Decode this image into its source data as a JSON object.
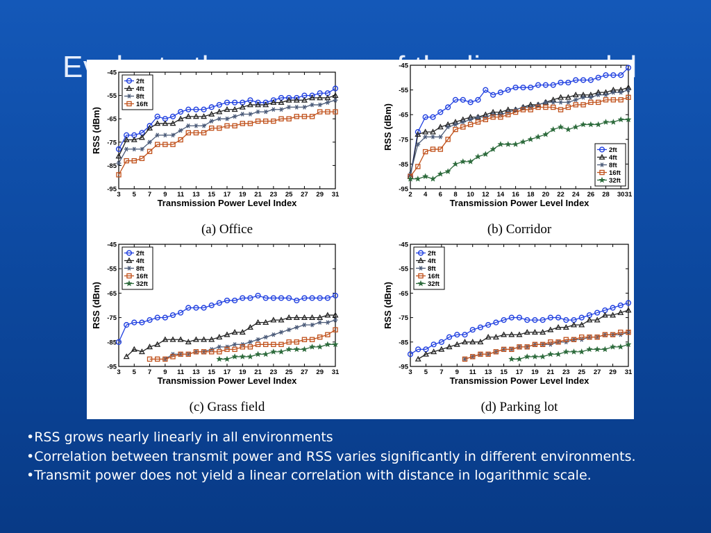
{
  "slide": {
    "title": "Evaluate the accuracy of the linear model",
    "bullets": [
      "•RSS grows nearly linearly in all environments",
      "•Correlation between transmit power and RSS varies significantly in different environments.",
      "•Transmit power does not yield a linear correlation with distance in logarithmic scale."
    ]
  },
  "series_styles": {
    "2ft": {
      "color": "#1f3fe0",
      "marker": "circle"
    },
    "4ft": {
      "color": "#222222",
      "marker": "triangle"
    },
    "8ft": {
      "color": "#4a5a78",
      "marker": "asterisk"
    },
    "16ft": {
      "color": "#c0501a",
      "marker": "square"
    },
    "32ft": {
      "color": "#2d6b3c",
      "marker": "star"
    }
  },
  "chart_data": [
    {
      "type": "line",
      "caption": "(a)  Office",
      "xlabel": "Transmission Power Level Index",
      "ylabel": "RSS (dBm)",
      "xlim": [
        3,
        31
      ],
      "ylim": [
        -95,
        -45
      ],
      "xticks": [
        3,
        5,
        7,
        9,
        11,
        13,
        15,
        17,
        19,
        21,
        23,
        25,
        27,
        29,
        31
      ],
      "yticks": [
        -95,
        -85,
        -75,
        -65,
        -55,
        -45
      ],
      "legend_position": "top-left",
      "x": [
        3,
        4,
        5,
        6,
        7,
        8,
        9,
        10,
        11,
        12,
        13,
        14,
        15,
        16,
        17,
        18,
        19,
        20,
        21,
        22,
        23,
        24,
        25,
        26,
        27,
        28,
        29,
        30,
        31
      ],
      "series": [
        {
          "name": "2ft",
          "values": [
            -78,
            -72,
            -72,
            -71,
            -68,
            -64,
            -65,
            -64,
            -62,
            -61,
            -61,
            -61,
            -60,
            -59,
            -58,
            -58,
            -58,
            -57,
            -58,
            -58,
            -57,
            -56,
            -56,
            -56,
            -55,
            -55,
            -54,
            -54,
            -52
          ]
        },
        {
          "name": "4ft",
          "values": [
            -81,
            -74,
            -74,
            -73,
            -69,
            -67,
            -67,
            -67,
            -65,
            -64,
            -64,
            -64,
            -63,
            -62,
            -61,
            -61,
            -60,
            -59,
            -59,
            -59,
            -58,
            -58,
            -57,
            -57,
            -57,
            -56,
            -56,
            -56,
            -55
          ]
        },
        {
          "name": "8ft",
          "values": [
            -84,
            -78,
            -78,
            -78,
            -75,
            -72,
            -72,
            -72,
            -70,
            -68,
            -68,
            -68,
            -66,
            -65,
            -65,
            -64,
            -63,
            -63,
            -62,
            -62,
            -61,
            -61,
            -60,
            -60,
            -60,
            -59,
            -59,
            -58,
            -57
          ]
        },
        {
          "name": "16ft",
          "values": [
            -89,
            -83,
            -83,
            -82,
            -79,
            -76,
            -76,
            -76,
            -74,
            -71,
            -71,
            -71,
            -69,
            -69,
            -68,
            -68,
            -67,
            -67,
            -66,
            -66,
            -66,
            -65,
            -65,
            -64,
            -64,
            -64,
            -62,
            -62,
            -62
          ]
        }
      ]
    },
    {
      "type": "line",
      "caption": "(b)  Corridor",
      "xlabel": "Transmission Power Level Index",
      "ylabel": "RSS (dBm)",
      "xlim": [
        2,
        31
      ],
      "ylim": [
        -95,
        -45
      ],
      "xticks": [
        2,
        4,
        6,
        8,
        10,
        12,
        14,
        16,
        18,
        20,
        22,
        24,
        26,
        28,
        30,
        31
      ],
      "yticks": [
        -95,
        -85,
        -75,
        -65,
        -55,
        -45
      ],
      "legend_position": "bottom-right",
      "x": [
        2,
        3,
        4,
        5,
        6,
        7,
        8,
        9,
        10,
        11,
        12,
        13,
        14,
        15,
        16,
        17,
        18,
        19,
        20,
        21,
        22,
        23,
        24,
        25,
        26,
        27,
        28,
        29,
        30,
        31
      ],
      "series": [
        {
          "name": "2ft",
          "values": [
            -90,
            -72,
            -66,
            -66,
            -64,
            -62,
            -59,
            -59,
            -60,
            -59,
            -55,
            -57,
            -56,
            -55,
            -54,
            -54,
            -54,
            -53,
            -53,
            -53,
            -52,
            -52,
            -51,
            -51,
            -51,
            -50,
            -49,
            -49,
            -49,
            -46
          ]
        },
        {
          "name": "4ft",
          "values": [
            -90,
            -73,
            -72,
            -72,
            -70,
            -69,
            -68,
            -67,
            -66,
            -66,
            -65,
            -64,
            -64,
            -63,
            -63,
            -62,
            -61,
            -61,
            -60,
            -59,
            -58,
            -58,
            -57,
            -57,
            -57,
            -56,
            -56,
            -55,
            -55,
            -54
          ]
        },
        {
          "name": "8ft",
          "values": [
            -89,
            -77,
            -74,
            -74,
            -74,
            -70,
            -69,
            -68,
            -67,
            -66,
            -66,
            -65,
            -65,
            -64,
            -63,
            -62,
            -62,
            -61,
            -60,
            -60,
            -60,
            -60,
            -59,
            -58,
            -58,
            -57,
            -57,
            -56,
            -56,
            -55
          ]
        },
        {
          "name": "16ft",
          "values": [
            -90,
            -86,
            -80,
            -79,
            -79,
            -75,
            -71,
            -70,
            -69,
            -68,
            -67,
            -66,
            -66,
            -65,
            -64,
            -63,
            -63,
            -62,
            -62,
            -62,
            -63,
            -62,
            -61,
            -61,
            -60,
            -60,
            -59,
            -59,
            -59,
            -58
          ]
        },
        {
          "name": "32ft",
          "values": [
            -91,
            -91,
            -90,
            -91,
            -89,
            -88,
            -85,
            -84,
            -84,
            -82,
            -81,
            -79,
            -77,
            -77,
            -77,
            -76,
            -75,
            -74,
            -73,
            -71,
            -70,
            -71,
            -70,
            -69,
            -69,
            -69,
            -68,
            -68,
            -67,
            -67
          ]
        }
      ]
    },
    {
      "type": "line",
      "caption": "(c)  Grass field",
      "xlabel": "Transmission Power Level Index",
      "ylabel": "RSS (dBm)",
      "xlim": [
        3,
        31
      ],
      "ylim": [
        -95,
        -45
      ],
      "xticks": [
        3,
        5,
        7,
        9,
        11,
        13,
        15,
        17,
        19,
        21,
        23,
        25,
        27,
        29,
        31
      ],
      "yticks": [
        -95,
        -85,
        -75,
        -65,
        -55,
        -45
      ],
      "legend_position": "top-left",
      "x": [
        3,
        4,
        5,
        6,
        7,
        8,
        9,
        10,
        11,
        12,
        13,
        14,
        15,
        16,
        17,
        18,
        19,
        20,
        21,
        22,
        23,
        24,
        25,
        26,
        27,
        28,
        29,
        30,
        31
      ],
      "series": [
        {
          "name": "2ft",
          "values": [
            -85,
            -78,
            -77,
            -77,
            -76,
            -75,
            -75,
            -74,
            -73,
            -71,
            -71,
            -71,
            -70,
            -69,
            -68,
            -68,
            -67,
            -67,
            -66,
            -67,
            -67,
            -67,
            -67,
            -68,
            -67,
            -67,
            -67,
            -67,
            -66
          ]
        },
        {
          "name": "4ft",
          "values": [
            null,
            -91,
            -88,
            -89,
            -87,
            -86,
            -84,
            -84,
            -84,
            -85,
            -84,
            -84,
            -84,
            -83,
            -82,
            -81,
            -81,
            -79,
            -77,
            -77,
            -76,
            -76,
            -75,
            -75,
            -75,
            -75,
            -75,
            -74,
            -74
          ]
        },
        {
          "name": "8ft",
          "values": [
            null,
            null,
            null,
            null,
            null,
            null,
            -92,
            -90,
            -90,
            -90,
            -89,
            -89,
            -88,
            -87,
            -87,
            -86,
            -86,
            -85,
            -84,
            -83,
            -82,
            -81,
            -80,
            -79,
            -78,
            -78,
            -77,
            -77,
            -76
          ]
        },
        {
          "name": "16ft",
          "values": [
            null,
            null,
            null,
            null,
            -92,
            -92,
            -92,
            -91,
            -90,
            -90,
            -89,
            -89,
            -89,
            -89,
            -88,
            -88,
            -87,
            -87,
            -86,
            -86,
            -86,
            -86,
            -85,
            -85,
            -84,
            -84,
            -83,
            -82,
            -80
          ]
        },
        {
          "name": "32ft",
          "values": [
            null,
            null,
            null,
            null,
            null,
            null,
            null,
            null,
            null,
            null,
            null,
            null,
            null,
            -92,
            -92,
            -91,
            -91,
            -91,
            -90,
            -90,
            -89,
            -89,
            -88,
            -88,
            -88,
            -87,
            -87,
            -86,
            -86
          ]
        }
      ]
    },
    {
      "type": "line",
      "caption": "(d)  Parking lot",
      "xlabel": "Transmission Power Level Index",
      "ylabel": "RSS (dBm)",
      "xlim": [
        3,
        31
      ],
      "ylim": [
        -95,
        -45
      ],
      "xticks": [
        3,
        5,
        7,
        9,
        11,
        13,
        15,
        17,
        19,
        21,
        23,
        25,
        27,
        29,
        31
      ],
      "yticks": [
        -95,
        -85,
        -75,
        -65,
        -55,
        -45
      ],
      "legend_position": "top-left",
      "x": [
        3,
        4,
        5,
        6,
        7,
        8,
        9,
        10,
        11,
        12,
        13,
        14,
        15,
        16,
        17,
        18,
        19,
        20,
        21,
        22,
        23,
        24,
        25,
        26,
        27,
        28,
        29,
        30,
        31
      ],
      "series": [
        {
          "name": "2ft",
          "values": [
            -90,
            -88,
            -88,
            -86,
            -85,
            -83,
            -82,
            -82,
            -80,
            -79,
            -78,
            -77,
            -76,
            -75,
            -75,
            -76,
            -76,
            -76,
            -75,
            -75,
            -76,
            -76,
            -75,
            -74,
            -73,
            -72,
            -71,
            -70,
            -69
          ]
        },
        {
          "name": "4ft",
          "values": [
            null,
            -92,
            -90,
            -89,
            -88,
            -87,
            -86,
            -85,
            -85,
            -85,
            -83,
            -83,
            -82,
            -82,
            -82,
            -81,
            -81,
            -81,
            -80,
            -79,
            -79,
            -78,
            -78,
            -76,
            -76,
            -74,
            -74,
            -73,
            -72
          ]
        },
        {
          "name": "8ft",
          "values": [
            null,
            null,
            null,
            null,
            null,
            null,
            null,
            -92,
            -91,
            -90,
            -90,
            -89,
            -88,
            -88,
            -87,
            -87,
            -86,
            -86,
            -86,
            -85,
            -85,
            -84,
            -84,
            -83,
            -83,
            -82,
            -82,
            -82,
            -81
          ]
        },
        {
          "name": "16ft",
          "values": [
            null,
            null,
            null,
            null,
            null,
            null,
            null,
            -92,
            -91,
            -90,
            -90,
            -89,
            -88,
            -88,
            -87,
            -87,
            -86,
            -86,
            -85,
            -85,
            -84,
            -84,
            -83,
            -83,
            -83,
            -82,
            -82,
            -81,
            -81
          ]
        },
        {
          "name": "32ft",
          "values": [
            null,
            null,
            null,
            null,
            null,
            null,
            null,
            null,
            null,
            null,
            null,
            null,
            null,
            -92,
            -92,
            -91,
            -91,
            -91,
            -90,
            -90,
            -89,
            -89,
            -89,
            -88,
            -88,
            -88,
            -87,
            -87,
            -86
          ]
        }
      ]
    }
  ]
}
